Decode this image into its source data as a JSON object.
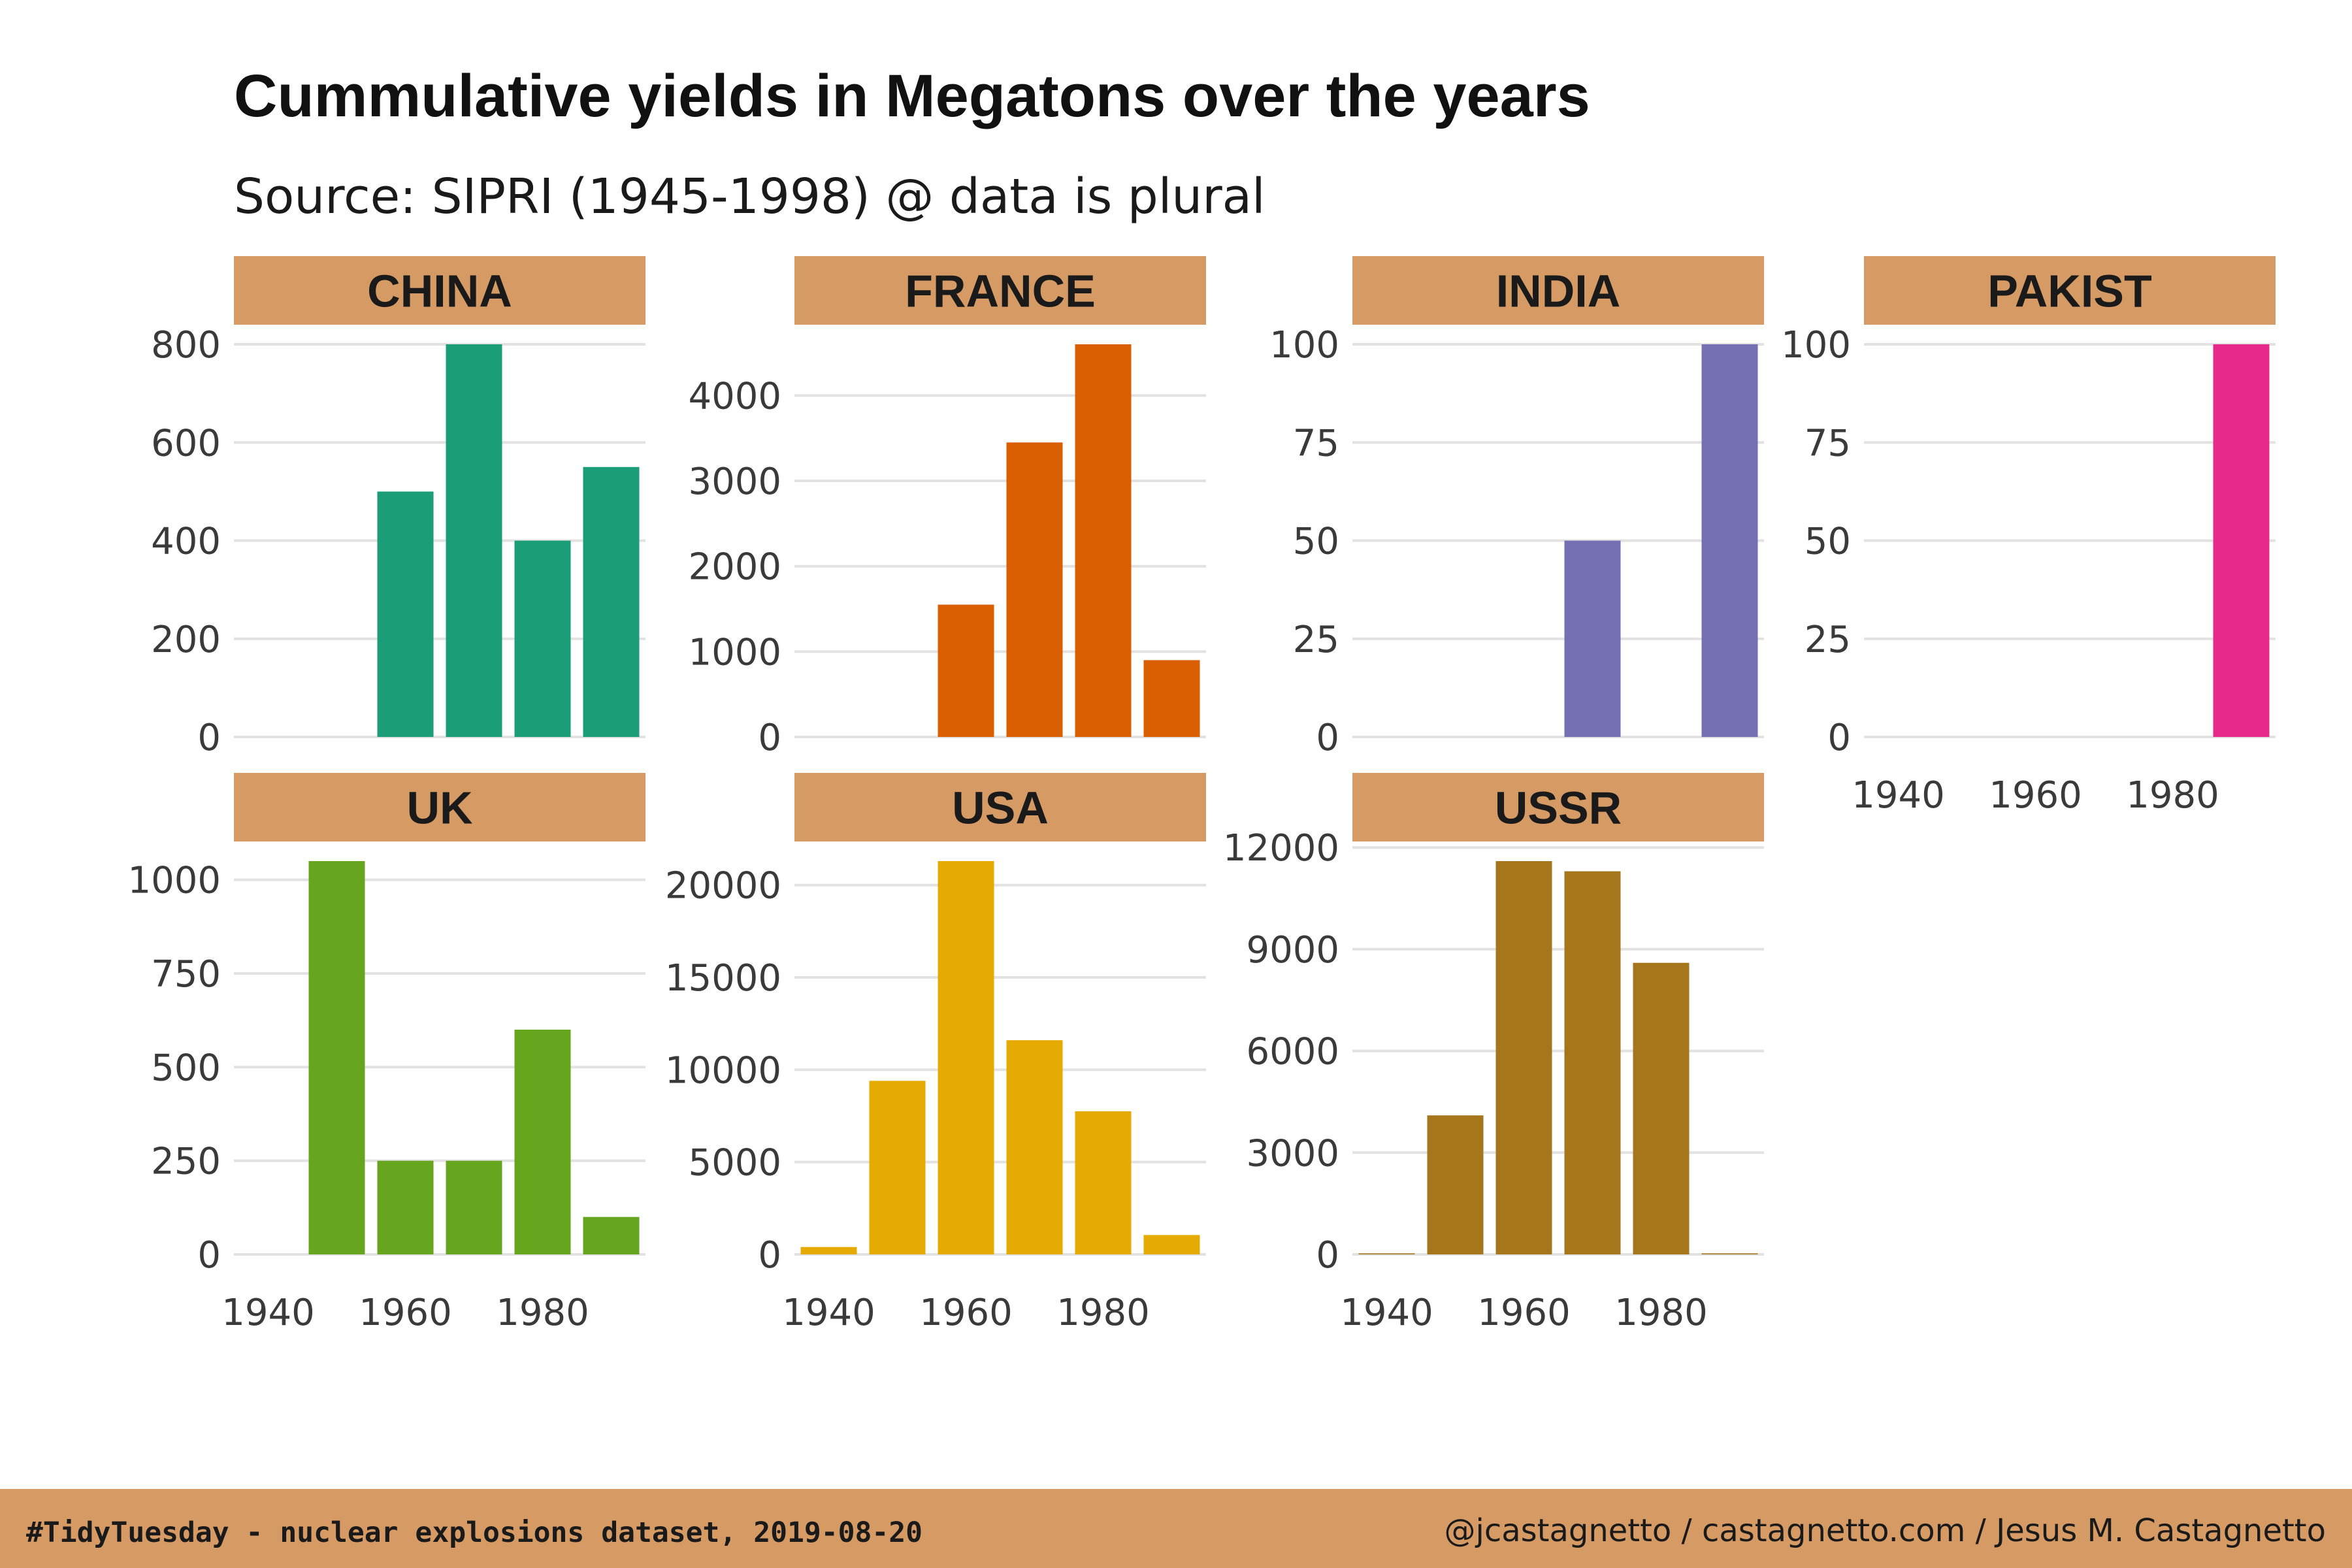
{
  "title": "Cummulative yields in Megatons over the years",
  "subtitle": "Source: SIPRI (1945-1998) @ data is plural",
  "footer": {
    "left": "#TidyTuesday - nuclear explosions dataset, 2019-08-20",
    "right": "@jcastagnetto / castagnetto.com / Jesus M. Castagnetto"
  },
  "colors": {
    "strip": "#d69b65",
    "grid": "#e2e2e2"
  },
  "chart_data": {
    "type": "bar",
    "layout": "faceted small multiples, 4 columns",
    "x_ticks": [
      "1940",
      "1960",
      "1980"
    ],
    "bin_width_years": 10,
    "facets": [
      {
        "name": "CHINA",
        "color": "#1b9e77",
        "ylim": [
          0,
          800
        ],
        "yticks": [
          0,
          200,
          400,
          600,
          800
        ],
        "x": [
          1960,
          1970,
          1980,
          1990
        ],
        "values": [
          500,
          800,
          400,
          550
        ]
      },
      {
        "name": "FRANCE",
        "color": "#d95f02",
        "ylim": [
          0,
          4600
        ],
        "yticks": [
          0,
          1000,
          2000,
          3000,
          4000
        ],
        "x": [
          1960,
          1970,
          1980,
          1990
        ],
        "values": [
          1550,
          3450,
          4600,
          900
        ]
      },
      {
        "name": "INDIA",
        "color": "#7570b3",
        "ylim": [
          0,
          100
        ],
        "yticks": [
          0,
          25,
          50,
          75,
          100
        ],
        "x": [
          1970,
          1990
        ],
        "values": [
          50,
          100
        ]
      },
      {
        "name": "PAKIST",
        "color": "#e7298a",
        "ylim": [
          0,
          100
        ],
        "yticks": [
          0,
          25,
          50,
          75,
          100
        ],
        "x": [
          1990
        ],
        "values": [
          100
        ]
      },
      {
        "name": "UK",
        "color": "#66a61e",
        "ylim": [
          0,
          1050
        ],
        "yticks": [
          0,
          250,
          500,
          750,
          1000
        ],
        "x": [
          1950,
          1960,
          1970,
          1980,
          1990
        ],
        "values": [
          1050,
          250,
          250,
          600,
          100
        ]
      },
      {
        "name": "USA",
        "color": "#e6ab02",
        "ylim": [
          0,
          21300
        ],
        "yticks": [
          0,
          5000,
          10000,
          15000,
          20000
        ],
        "x": [
          1940,
          1950,
          1960,
          1970,
          1980,
          1990
        ],
        "values": [
          400,
          9400,
          21300,
          11600,
          7750,
          1050
        ]
      },
      {
        "name": "USSR",
        "color": "#a6761d",
        "ylim": [
          0,
          11600
        ],
        "yticks": [
          0,
          3000,
          6000,
          9000,
          12000
        ],
        "x": [
          1940,
          1950,
          1960,
          1970,
          1980,
          1990
        ],
        "values": [
          30,
          4100,
          11600,
          11300,
          8600,
          30
        ]
      }
    ]
  }
}
